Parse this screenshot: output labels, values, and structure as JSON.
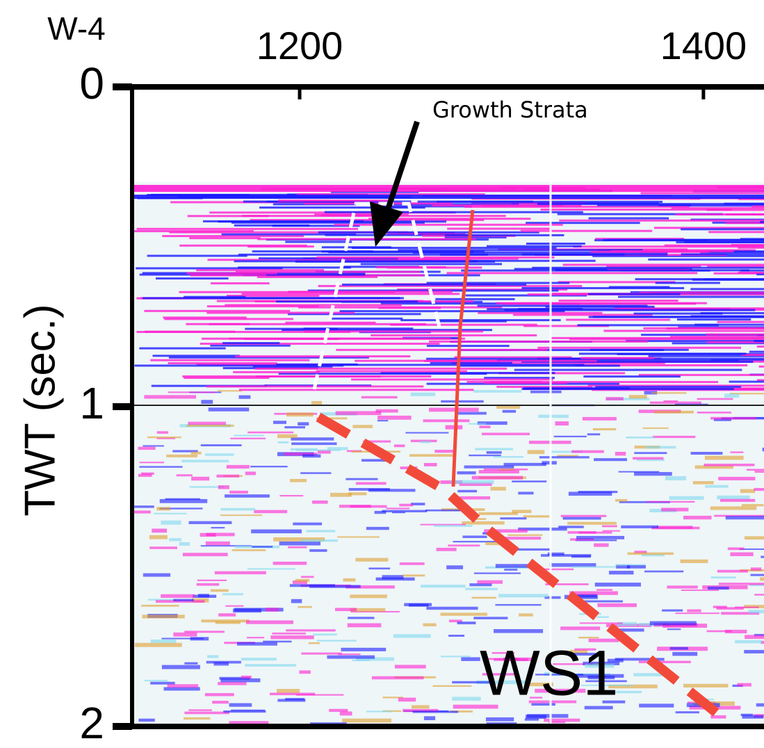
{
  "chart_data": {
    "type": "seismic-section",
    "title": "W-4",
    "ylabel": "TWT (sec.)",
    "annotations": [
      "Growth Strata",
      "WS1"
    ],
    "xlim": [
      1117,
      1430
    ],
    "xticks": [
      1200,
      1400
    ],
    "ylim": [
      0,
      2
    ],
    "yticks": [
      0,
      1,
      2
    ],
    "y_inverted": true
  }
}
